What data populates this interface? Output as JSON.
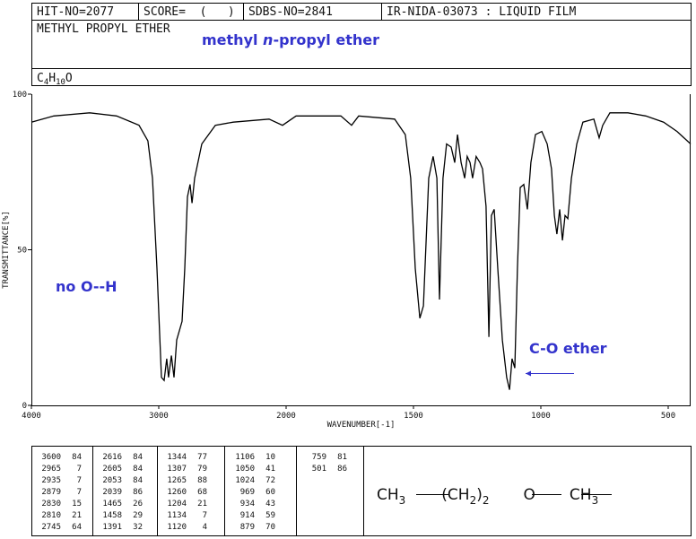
{
  "header": {
    "row1": [
      "HIT-NO=2077",
      "SCORE=  (   )",
      "SDBS-NO=2841",
      "IR-NIDA-03073 : LIQUID FILM"
    ],
    "name": "METHYL PROPYL ETHER",
    "annotation": [
      "methyl ",
      "n",
      "-propyl ether"
    ],
    "formula": [
      "C",
      "4",
      "H",
      "10",
      "O"
    ]
  },
  "chart_data": {
    "type": "line",
    "xlabel": "WAVENUMBER[-1]",
    "ylabel": "TRANSMITTANCE[%]",
    "xlim": [
      4000,
      412
    ],
    "ylim": [
      0,
      100
    ],
    "xticks": [
      4000,
      3000,
      2000,
      1500,
      1000,
      500
    ],
    "yticks": [
      0,
      50,
      100
    ],
    "color": "#000000",
    "x": [
      4000,
      3824,
      3542,
      3331,
      3155,
      3085,
      3049,
      3014,
      2979,
      2958,
      2937,
      2923,
      2901,
      2880,
      2859,
      2838,
      2817,
      2796,
      2775,
      2754,
      2739,
      2718,
      2662,
      2556,
      2415,
      2134,
      2028,
      1961,
      1785,
      1743,
      1715,
      1574,
      1532,
      1511,
      1493,
      1475,
      1461,
      1440,
      1423,
      1408,
      1398,
      1384,
      1370,
      1352,
      1338,
      1327,
      1313,
      1299,
      1289,
      1278,
      1268,
      1254,
      1239,
      1229,
      1215,
      1204,
      1194,
      1183,
      1169,
      1151,
      1134,
      1123,
      1113,
      1102,
      1092,
      1081,
      1067,
      1053,
      1039,
      1021,
      996,
      975,
      958,
      947,
      937,
      926,
      915,
      905,
      894,
      880,
      859,
      835,
      792,
      771,
      757,
      729,
      658,
      588,
      518,
      465,
      412
    ],
    "values": [
      91,
      93,
      94,
      93,
      90,
      85,
      73,
      44,
      9,
      8,
      15,
      9,
      16,
      9,
      21,
      24,
      27,
      44,
      67,
      71,
      65,
      73,
      84,
      90,
      91,
      92,
      90,
      93,
      93,
      90,
      93,
      92,
      87,
      73,
      44,
      28,
      32,
      73,
      80,
      73,
      34,
      73,
      84,
      83,
      78,
      87,
      78,
      73,
      80,
      78,
      73,
      80,
      78,
      76,
      64,
      22,
      61,
      63,
      44,
      21,
      9,
      5,
      15,
      12,
      44,
      70,
      71,
      63,
      78,
      87,
      88,
      84,
      76,
      61,
      55,
      63,
      53,
      61,
      60,
      73,
      84,
      91,
      92,
      86,
      90,
      94,
      94,
      93,
      91,
      88,
      84
    ],
    "annotations": [
      "no O--H",
      "C-O ether"
    ]
  },
  "peak_table": [
    [
      [
        3600,
        84
      ],
      [
        2965,
        7
      ],
      [
        2935,
        7
      ],
      [
        2879,
        7
      ],
      [
        2830,
        15
      ],
      [
        2810,
        21
      ],
      [
        2745,
        64
      ]
    ],
    [
      [
        2616,
        84
      ],
      [
        2605,
        84
      ],
      [
        2053,
        84
      ],
      [
        2039,
        86
      ],
      [
        1465,
        26
      ],
      [
        1458,
        29
      ],
      [
        1391,
        32
      ]
    ],
    [
      [
        1344,
        77
      ],
      [
        1307,
        79
      ],
      [
        1265,
        88
      ],
      [
        1260,
        68
      ],
      [
        1204,
        21
      ],
      [
        1134,
        7
      ],
      [
        1120,
        4
      ]
    ],
    [
      [
        1106,
        10
      ],
      [
        1050,
        41
      ],
      [
        1024,
        72
      ],
      [
        969,
        60
      ],
      [
        934,
        43
      ],
      [
        914,
        59
      ],
      [
        879,
        70
      ]
    ],
    [
      [
        759,
        81
      ],
      [
        501,
        86
      ]
    ]
  ],
  "structure": [
    "CH",
    "3",
    "(CH",
    "2",
    ")",
    "2",
    "O",
    "CH",
    "3"
  ]
}
